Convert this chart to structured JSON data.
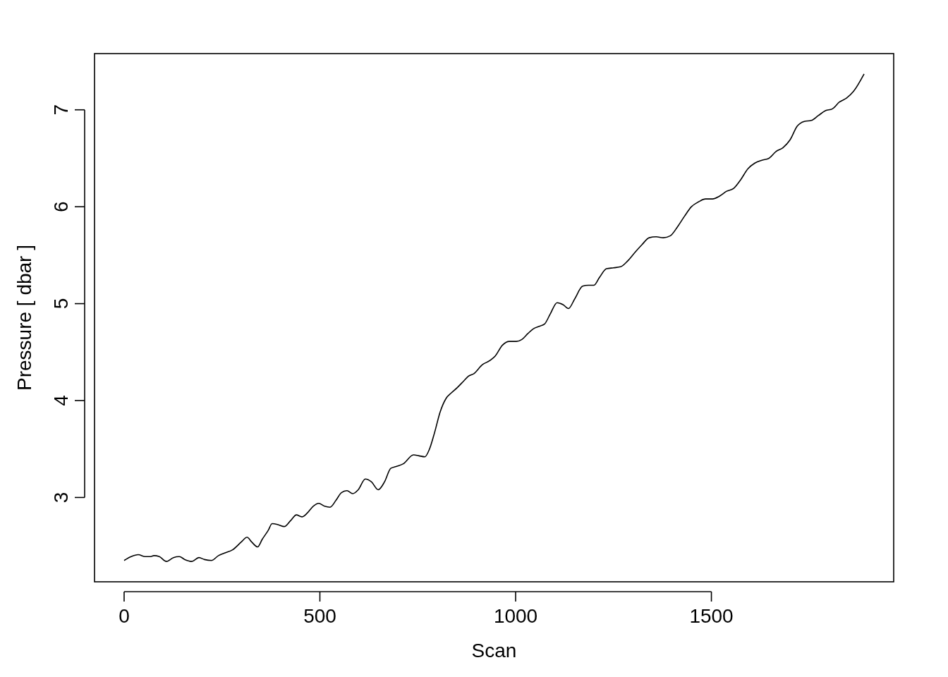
{
  "chart_data": {
    "type": "line",
    "xlabel": "Scan",
    "ylabel": "Pressure [ dbar ]",
    "xlim": [
      -75.6,
      1965.6
    ],
    "ylim": [
      2.13,
      7.58
    ],
    "xticks": [
      0,
      500,
      1000,
      1500
    ],
    "yticks": [
      3,
      4,
      5,
      6,
      7
    ],
    "grid": false,
    "marker": "none",
    "line_style": "solid",
    "series": [
      {
        "color": "#000000",
        "x": [
          0,
          18,
          36,
          54,
          68,
          76,
          90,
          108,
          126,
          141,
          155,
          173,
          191,
          205,
          223,
          241,
          259,
          277,
          299,
          314,
          326,
          341,
          353,
          368,
          378,
          393,
          409,
          425,
          440,
          454,
          468,
          483,
          497,
          512,
          526,
          541,
          555,
          569,
          584,
          598,
          616,
          632,
          649,
          665,
          681,
          695,
          714,
          739,
          753,
          768,
          780,
          793,
          807,
          822,
          836,
          850,
          867,
          879,
          894,
          915,
          933,
          948,
          966,
          984,
          1002,
          1016,
          1031,
          1045,
          1063,
          1074,
          1088,
          1106,
          1121,
          1135,
          1151,
          1171,
          1186,
          1200,
          1214,
          1232,
          1250,
          1268,
          1286,
          1305,
          1323,
          1341,
          1359,
          1377,
          1395,
          1413,
          1431,
          1449,
          1467,
          1485,
          1503,
          1521,
          1539,
          1557,
          1575,
          1593,
          1611,
          1629,
          1647,
          1665,
          1683,
          1701,
          1719,
          1737,
          1755,
          1773,
          1791,
          1809,
          1827,
          1845,
          1863,
          1890
        ],
        "values": [
          2.35,
          2.39,
          2.41,
          2.39,
          2.39,
          2.4,
          2.39,
          2.34,
          2.38,
          2.39,
          2.36,
          2.34,
          2.38,
          2.36,
          2.35,
          2.4,
          2.43,
          2.46,
          2.54,
          2.59,
          2.54,
          2.49,
          2.57,
          2.66,
          2.73,
          2.72,
          2.7,
          2.76,
          2.82,
          2.8,
          2.84,
          2.91,
          2.94,
          2.91,
          2.9,
          2.97,
          3.05,
          3.07,
          3.04,
          3.08,
          3.19,
          3.16,
          3.08,
          3.16,
          3.3,
          3.32,
          3.35,
          3.44,
          3.43,
          3.42,
          3.5,
          3.67,
          3.88,
          4.02,
          4.08,
          4.13,
          4.2,
          4.25,
          4.28,
          4.37,
          4.41,
          4.46,
          4.57,
          4.61,
          4.61,
          4.63,
          4.69,
          4.74,
          4.77,
          4.79,
          4.89,
          5.01,
          4.99,
          4.95,
          5.05,
          5.18,
          5.19,
          5.19,
          5.27,
          5.36,
          5.37,
          5.38,
          5.44,
          5.53,
          5.61,
          5.68,
          5.69,
          5.68,
          5.7,
          5.79,
          5.9,
          6.0,
          6.05,
          6.08,
          6.08,
          6.11,
          6.16,
          6.19,
          6.28,
          6.39,
          6.45,
          6.48,
          6.5,
          6.57,
          6.61,
          6.69,
          6.83,
          6.88,
          6.89,
          6.94,
          6.99,
          7.01,
          7.08,
          7.12,
          7.19,
          7.37
        ]
      }
    ]
  }
}
